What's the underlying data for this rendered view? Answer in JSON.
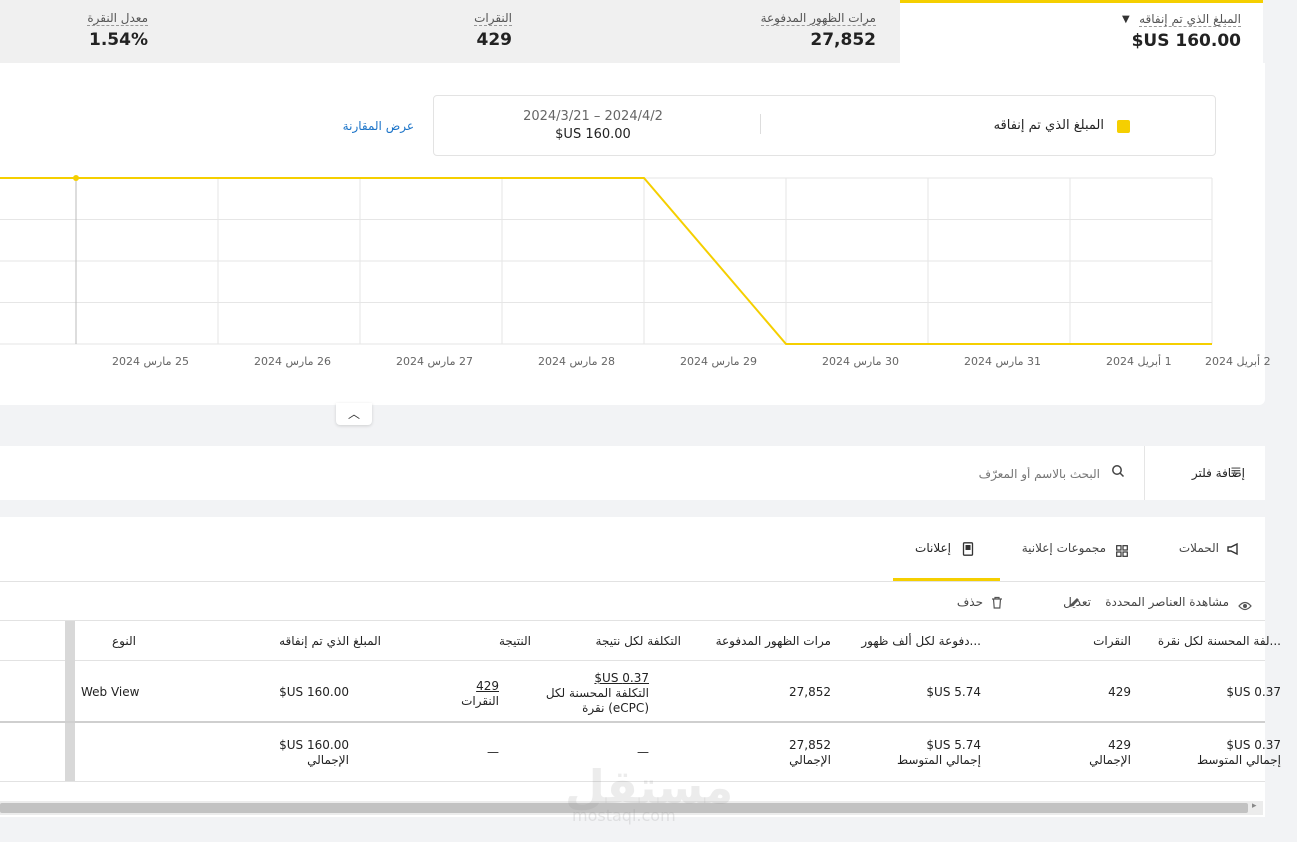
{
  "metrics": {
    "spent": {
      "label": "المبلغ الذي تم إنفاقه",
      "value": "$US 160.00"
    },
    "impressions": {
      "label": "مرات الظهور المدفوعة",
      "value": "27,852"
    },
    "clicks": {
      "label": "النقرات",
      "value": "429"
    },
    "ctr": {
      "label": "معدل النقرة",
      "value": "1.54%"
    }
  },
  "legend": {
    "metric_name": "المبلغ الذي تم إنفاقه",
    "date_range": "2024/3/21 – 2024/4/2",
    "amount": "$US 160.00",
    "compare_link": "عرض المقارنة",
    "color": "#f5cf00"
  },
  "chart_data": {
    "type": "line",
    "x": [
      "25 مارس 2024",
      "26 مارس 2024",
      "27 مارس 2024",
      "28 مارس 2024",
      "29 مارس 2024",
      "30 مارس 2024",
      "31 مارس 2024",
      "1 أبريل 2024",
      "2 أبريل 2024"
    ],
    "series": [
      {
        "values": [
          1,
          1,
          1,
          1,
          1,
          0,
          0,
          0,
          0
        ]
      }
    ],
    "ylim": [
      0,
      1
    ],
    "line_color": "#f5cf00",
    "grid": true
  },
  "filter": {
    "add_filter": "إضافة فلتر",
    "search_placeholder": "البحث بالاسم أو المعرّف"
  },
  "tabs": {
    "campaigns": "الحملات",
    "ad_groups": "مجموعات إعلانية",
    "ads": "إعلانات"
  },
  "actions": {
    "view_selected": "مشاهدة العناصر المحددة",
    "edit": "تعديل",
    "delete": "حذف"
  },
  "table": {
    "headers": {
      "ecpc": "...لفة المحسنة لكل نقرة",
      "clicks": "النقرات",
      "cpm": "...دفوعة لكل ألف ظهور",
      "impressions": "مرات الظهور المدفوعة",
      "cost_per_result": "التكلفة لكل نتيجة",
      "result": "النتيجة",
      "spent": "المبلغ الذي تم إنفاقه",
      "type": "النوع"
    },
    "row": {
      "ecpc": "0.37 US$",
      "clicks": "429",
      "cpm": "5.74 US$",
      "impressions": "27,852",
      "cost_per_result": "0.37 US$",
      "cost_per_result_sub1": "التكلفة المحسنة لكل",
      "cost_per_result_sub2": "(eCPC) نقرة",
      "result": "429",
      "result_sub": "النقرات",
      "spent": "160.00 US$",
      "type": "Web View"
    },
    "totals": {
      "ecpc": "0.37 US$",
      "ecpc_sub": "إجمالي المتوسط",
      "clicks": "429",
      "clicks_sub": "الإجمالي",
      "cpm": "5.74 US$",
      "cpm_sub": "إجمالي المتوسط",
      "impressions": "27,852",
      "impressions_sub": "الإجمالي",
      "cost_per_result": "—",
      "result": "—",
      "spent": "160.00 US$",
      "spent_sub": "الإجمالي"
    }
  },
  "watermark": {
    "text": "مستقل",
    "sub": "mostaql.com"
  }
}
